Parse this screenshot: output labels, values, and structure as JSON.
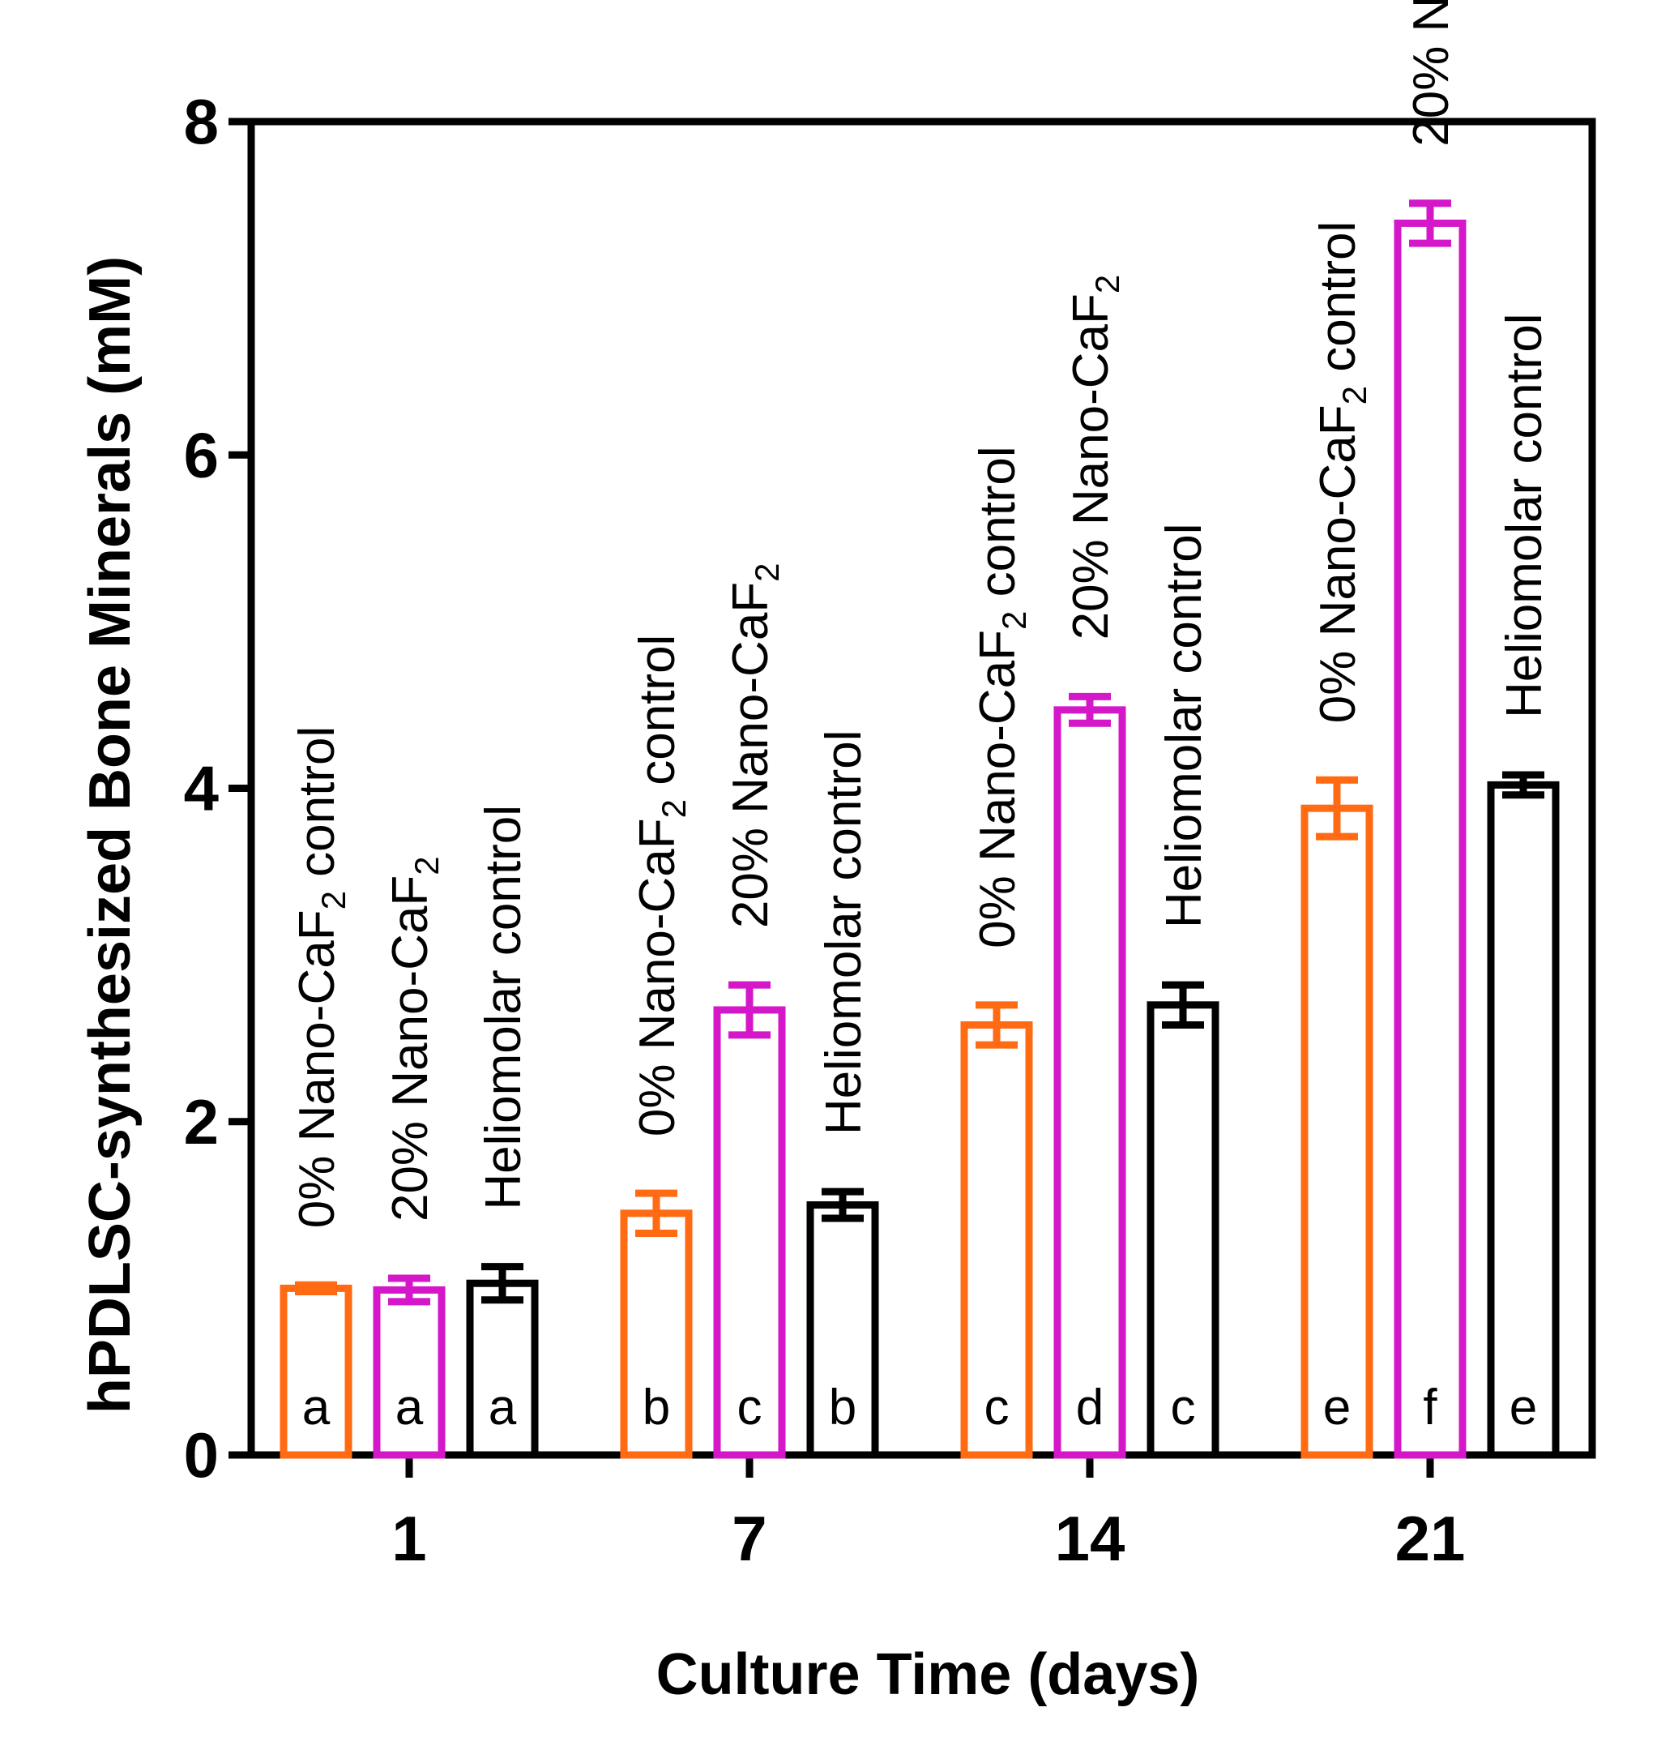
{
  "chart_data": {
    "type": "bar",
    "title": "",
    "xlabel": "Culture Time (days)",
    "ylabel": "hPDLSC-synthesized Bone Minerals (mM)",
    "ylim": [
      0,
      8
    ],
    "yticks": [
      "0",
      "2",
      "4",
      "6",
      "8"
    ],
    "categories": [
      "1",
      "7",
      "14",
      "21"
    ],
    "series": [
      {
        "name": "0% Nano-CaF2 control",
        "label_parts": [
          "0% Nano-CaF",
          "2",
          " control"
        ],
        "color": "#ff6a13",
        "values": [
          1.0,
          1.45,
          2.58,
          3.88
        ],
        "errors": [
          0.02,
          0.12,
          0.12,
          0.17
        ],
        "letters": [
          "a",
          "b",
          "c",
          "e"
        ]
      },
      {
        "name": "20% Nano-CaF2",
        "label_parts": [
          "20% Nano-CaF",
          "2",
          ""
        ],
        "color": "#d417c8",
        "values": [
          0.99,
          2.67,
          4.47,
          7.39
        ],
        "errors": [
          0.07,
          0.15,
          0.08,
          0.12
        ],
        "letters": [
          "a",
          "c",
          "d",
          "f"
        ]
      },
      {
        "name": "Heliomolar control",
        "label_parts": [
          "Heliomolar control",
          "",
          ""
        ],
        "color": "#000000",
        "values": [
          1.03,
          1.5,
          2.7,
          4.02
        ],
        "errors": [
          0.1,
          0.08,
          0.12,
          0.06
        ],
        "letters": [
          "a",
          "b",
          "c",
          "e"
        ]
      }
    ]
  }
}
